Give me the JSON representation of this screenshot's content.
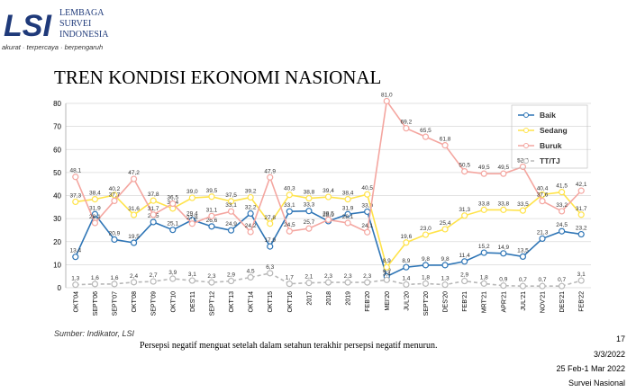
{
  "header": {
    "logo": "LSI",
    "org_line1": "LEMBAGA",
    "org_line2": "SURVEI",
    "org_line3": "INDONESIA",
    "tagline": "akurat · terpercaya · berpengaruh"
  },
  "footer": {
    "source": "Sumber: Indikator, LSI",
    "caption": "Persepsi negatif menguat setelah dalam setahun terakhir persepsi negatif menurun.",
    "page": "17",
    "date": "3/3/2022",
    "period": "25 Feb-1 Mar 2022",
    "survey": "Survei Nasional"
  },
  "chart_data": {
    "type": "line",
    "title": "TREN KONDISI EKONOMI NASIONAL",
    "categories": [
      "OKT'04",
      "SEPT'06",
      "SEPT'07",
      "OKT'08",
      "SEPT'09",
      "OKT'10",
      "DES'11",
      "SEPT'12",
      "OKT'13",
      "OKT'14",
      "OKT'15",
      "OKT'16",
      "2017",
      "2018",
      "2019",
      "FEB'20",
      "MEI'20",
      "JUL'20",
      "SEPT'20",
      "DES'20",
      "FEB'21",
      "MRT'21",
      "APR'21",
      "JUL'21",
      "NOV'21",
      "DES'21",
      "FEB'22"
    ],
    "ylim": [
      0,
      80
    ],
    "yticks": [
      0,
      10,
      20,
      30,
      40,
      50,
      60,
      70,
      80
    ],
    "grid": true,
    "legend": "top-right",
    "series": [
      {
        "name": "Baik",
        "color": "#2e75b6",
        "dashed": false,
        "values": [
          13.4,
          31.9,
          20.9,
          19.5,
          28.5,
          25.1,
          29.4,
          26.6,
          24.9,
          32.2,
          17.9,
          33.1,
          33.3,
          28.9,
          31.9,
          33.0,
          4.9,
          8.9,
          9.8,
          9.8,
          11.4,
          15.2,
          14.9,
          13.5,
          21.3,
          24.5,
          23.2
        ],
        "value_labels": [
          "13,4",
          "31,9",
          "20,9",
          "19,5",
          "28,5",
          "25,1",
          "29,4",
          "26,6",
          "24,9",
          "32,2",
          "17,9",
          "33,1",
          "33,3",
          "28,9",
          "31,9",
          "33,0",
          "4,9",
          "8,9",
          "9,8",
          "9,8",
          "11,4",
          "15,2",
          "14,9",
          "13,5",
          "21,3",
          "24,5",
          "23,2"
        ]
      },
      {
        "name": "Sedang",
        "color": "#ffe34a",
        "dashed": false,
        "values": [
          37.3,
          38.4,
          40.2,
          31.6,
          37.8,
          34.4,
          39.0,
          39.5,
          37.5,
          39.2,
          27.8,
          40.3,
          38.8,
          39.4,
          38.4,
          40.5,
          8.9,
          19.6,
          23.0,
          25.4,
          31.3,
          33.8,
          33.8,
          33.5,
          40.4,
          41.5,
          31.7
        ],
        "value_labels": [
          "37,3",
          "38,4",
          "40,2",
          "31,6",
          "37,8",
          "34,4",
          "39,0",
          "39,5",
          "37,5",
          "39,2",
          "27,8",
          "40,3",
          "38,8",
          "39,4",
          "38,4",
          "40,5",
          "8,9",
          "19,6",
          "23,0",
          "25,4",
          "31,3",
          "33,8",
          "33,8",
          "33,5",
          "40,4",
          "41,5",
          "31,7"
        ]
      },
      {
        "name": "Buruk",
        "color": "#f4a6a0",
        "dashed": false,
        "values": [
          48.1,
          28.1,
          37.7,
          47.2,
          31.7,
          36.5,
          27.8,
          31.1,
          33.1,
          24.2,
          47.9,
          24.5,
          25.7,
          29.5,
          28.1,
          24.1,
          81.0,
          69.2,
          65.5,
          61.8,
          50.5,
          49.5,
          49.5,
          52.5,
          37.6,
          33.2,
          42.1
        ],
        "value_labels": [
          "48,1",
          "28,1",
          "37,7",
          "47,2",
          "31,7",
          "36,5",
          "27,8",
          "31,1",
          "33,1",
          "24,2",
          "47,9",
          "24,5",
          "25,7",
          "29,5",
          "28,1",
          "24,1",
          "81,0",
          "69,2",
          "65,5",
          "61,8",
          "50,5",
          "49,5",
          "49,5",
          "52,5",
          "37,6",
          "33,2",
          "42,1"
        ]
      },
      {
        "name": "TT/TJ",
        "color": "#b8b8b8",
        "dashed": true,
        "values": [
          1.3,
          1.6,
          1.6,
          2.4,
          2.7,
          3.9,
          3.1,
          2.3,
          2.9,
          4.5,
          6.3,
          1.7,
          2.1,
          2.3,
          2.3,
          2.3,
          3.4,
          1.4,
          1.8,
          1.3,
          2.9,
          1.8,
          0.9,
          0.7,
          0.7,
          0.7,
          3.1
        ],
        "value_labels": [
          "1,3",
          "1,6",
          "1,6",
          "2,4",
          "2,7",
          "3,9",
          "3,1",
          "2,3",
          "2,9",
          "4,5",
          "6,3",
          "1,7",
          "2,1",
          "2,3",
          "2,3",
          "2,3",
          "3,4",
          "1,4",
          "1,8",
          "1,3",
          "2,9",
          "1,8",
          "0,9",
          "0,7",
          "0,7",
          "0,7",
          "3,1"
        ]
      }
    ]
  }
}
